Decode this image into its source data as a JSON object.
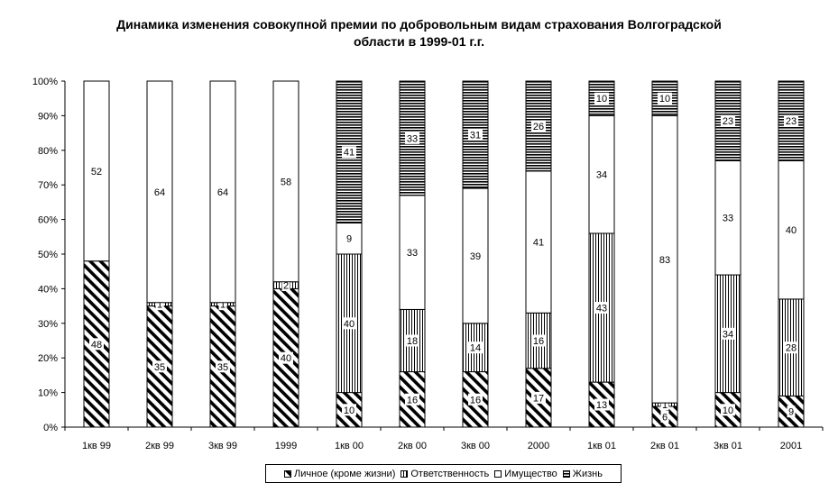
{
  "title_line1": "Динамика изменения совокупной премии по добровольным видам страхования Волгоградской",
  "title_line2": "области в 1999-01 г.г.",
  "chart_data": {
    "type": "bar",
    "stacked": "percent",
    "categories": [
      "1кв 99",
      "2кв 99",
      "3кв 99",
      "1999",
      "1кв 00",
      "2кв 00",
      "3кв 00",
      "2000",
      "1кв 01",
      "2кв 01",
      "3кв 01",
      "2001"
    ],
    "y_ticks": [
      "0%",
      "10%",
      "20%",
      "30%",
      "40%",
      "50%",
      "60%",
      "70%",
      "80%",
      "90%",
      "100%"
    ],
    "ylim": [
      0,
      100
    ],
    "grid": false,
    "legend_position": "bottom",
    "series": [
      {
        "name": "Личное (кроме жизни)",
        "pattern": "diagonal",
        "values": [
          48,
          35,
          35,
          40,
          10,
          16,
          16,
          17,
          13,
          6,
          10,
          9
        ],
        "labels": [
          "48",
          "35",
          "35",
          "40",
          "10",
          "16",
          "16",
          "17",
          "13",
          "6",
          "10",
          "9"
        ]
      },
      {
        "name": "Ответственность",
        "pattern": "vertical",
        "values": [
          0,
          1,
          1,
          2,
          40,
          18,
          14,
          16,
          43,
          1,
          34,
          28
        ],
        "labels": [
          "",
          "1",
          "1",
          "2",
          "40",
          "18",
          "14",
          "16",
          "43",
          "1",
          "34",
          "28"
        ]
      },
      {
        "name": "Имущество",
        "pattern": "blank",
        "values": [
          52,
          64,
          64,
          58,
          9,
          33,
          39,
          41,
          34,
          83,
          33,
          40
        ],
        "labels": [
          "52",
          "64",
          "64",
          "58",
          "9",
          "33",
          "39",
          "41",
          "34",
          "83",
          "33",
          "40"
        ]
      },
      {
        "name": "Жизнь",
        "pattern": "horizontal",
        "values": [
          0,
          0,
          0,
          0,
          41,
          33,
          31,
          26,
          10,
          10,
          23,
          23
        ],
        "labels": [
          "",
          "",
          "",
          "",
          "41",
          "33",
          "31",
          "26",
          "10",
          "10",
          "23",
          "23"
        ]
      }
    ]
  }
}
